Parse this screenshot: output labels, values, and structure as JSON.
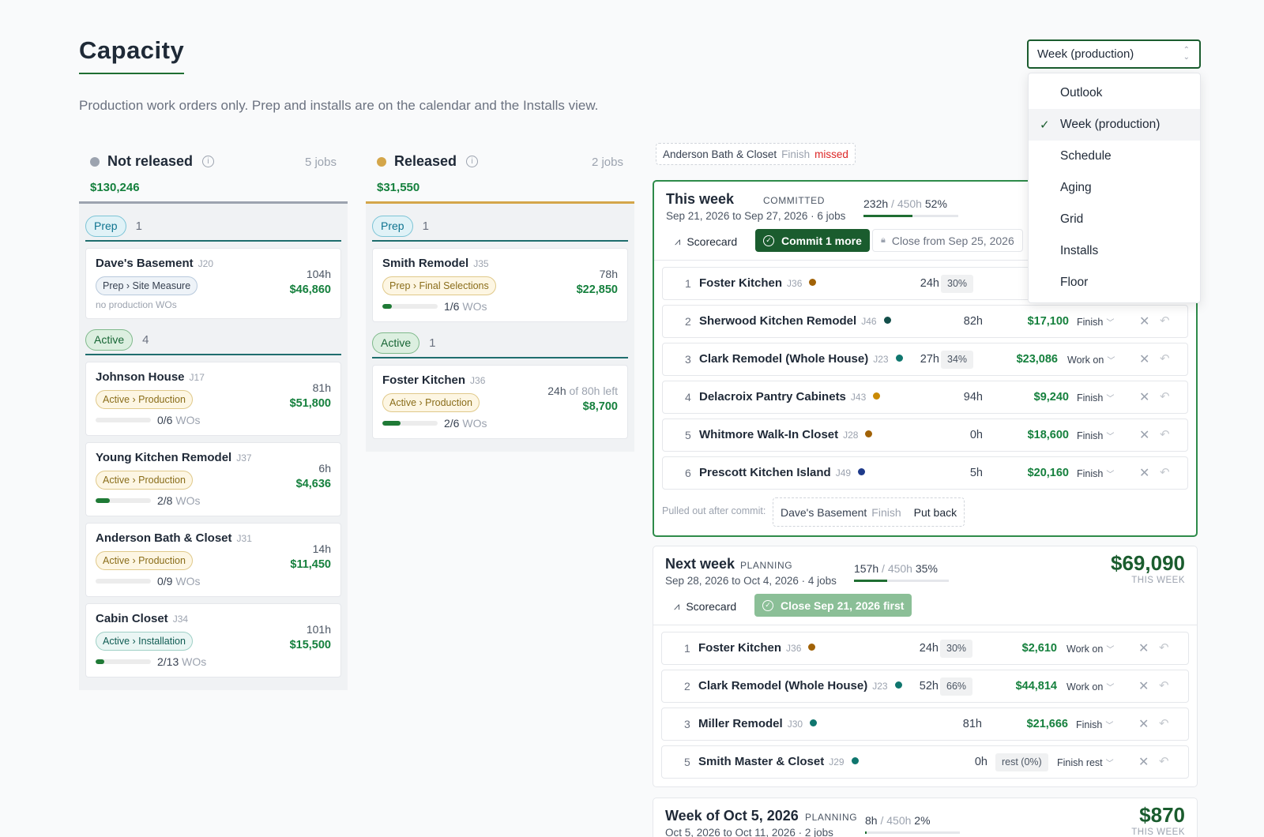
{
  "page": {
    "title": "Capacity",
    "subtitle": "Production work orders only. Prep and installs are on the calendar and the Installs view."
  },
  "view_select": {
    "value": "Week (production)",
    "options": [
      "Outlook",
      "Week (production)",
      "Schedule",
      "Aging",
      "Grid",
      "Installs",
      "Floor"
    ],
    "selected": "Week (production)"
  },
  "columns": [
    {
      "title": "Not released",
      "count": "5 jobs",
      "total": "$130,246",
      "dot_color": "#9ca3af",
      "border_color": "#9ca3af",
      "groups": [
        {
          "label": "Prep",
          "n": "1",
          "cards": [
            {
              "name": "Dave's Basement",
              "jid": "J20",
              "tag": "Prep › Site Measure",
              "tag_style": "blue",
              "sub": "no production WOs",
              "hours": "104h",
              "money": "$46,860"
            }
          ]
        },
        {
          "label": "Active",
          "n": "4",
          "cards": [
            {
              "name": "Johnson House",
              "jid": "J17",
              "tag": "Active › Production",
              "tag_style": "yellow",
              "progress": 0,
              "wo_done": "0/6",
              "wo_label": "WOs",
              "hours": "81h",
              "money": "$51,800"
            },
            {
              "name": "Young Kitchen Remodel",
              "jid": "J37",
              "tag": "Active › Production",
              "tag_style": "yellow",
              "progress": 0.25,
              "wo_done": "2/8",
              "wo_label": "WOs",
              "hours": "6h",
              "money": "$4,636"
            },
            {
              "name": "Anderson Bath & Closet",
              "jid": "J31",
              "tag": "Active › Production",
              "tag_style": "yellow",
              "progress": 0,
              "wo_done": "0/9",
              "wo_label": "WOs",
              "hours": "14h",
              "money": "$11,450"
            },
            {
              "name": "Cabin Closet",
              "jid": "J34",
              "tag": "Active › Installation",
              "tag_style": "teal",
              "progress": 0.15,
              "wo_done": "2/13",
              "wo_label": "WOs",
              "hours": "101h",
              "money": "$15,500"
            }
          ]
        }
      ]
    },
    {
      "title": "Released",
      "count": "2 jobs",
      "total": "$31,550",
      "dot_color": "#d4a64a",
      "border_color": "#d4a64a",
      "groups": [
        {
          "label": "Prep",
          "n": "1",
          "cards": [
            {
              "name": "Smith Remodel",
              "jid": "J35",
              "tag": "Prep › Final Selections",
              "tag_style": "yellow",
              "progress": 0.17,
              "wo_done": "1/6",
              "wo_label": "WOs",
              "hours": "78h",
              "money": "$22,850"
            }
          ]
        },
        {
          "label": "Active",
          "n": "1",
          "cards": [
            {
              "name": "Foster Kitchen",
              "jid": "J36",
              "tag": "Active › Production",
              "tag_style": "yellow",
              "progress": 0.33,
              "wo_done": "2/6",
              "wo_label": "WOs",
              "hours": "24h",
              "hours_suffix": " of 80h left",
              "money": "$8,700"
            }
          ]
        }
      ]
    }
  ],
  "missed": {
    "name": "Anderson Bath & Closet",
    "stage": "Finish",
    "status": "missed"
  },
  "weeks": [
    {
      "title": "This week",
      "status": "COMMITTED",
      "range": "Sep 21, 2026 to Sep 27, 2026 · 6 jobs",
      "util_used": "232h",
      "util_cap": "/ 450h",
      "util_pct": "52%",
      "util_fill": 0.52,
      "scorecard": "Scorecard",
      "commit_btn": "Commit 1 more",
      "close_btn": "Close from Sep 25, 2026",
      "rows": [
        {
          "num": "1",
          "name": "Foster Kitchen",
          "jid": "J36",
          "dot": "#a16207",
          "hours": "24h",
          "pct": "30%",
          "money": "",
          "action": ""
        },
        {
          "num": "2",
          "name": "Sherwood Kitchen Remodel",
          "jid": "J46",
          "dot": "#134e4a",
          "hours": "82h",
          "pct": "",
          "money": "$17,100",
          "action": "Finish"
        },
        {
          "num": "3",
          "name": "Clark Remodel (Whole House)",
          "jid": "J23",
          "dot": "#0f766e",
          "hours": "27h",
          "pct": "34%",
          "money": "$23,086",
          "action": "Work on"
        },
        {
          "num": "4",
          "name": "Delacroix Pantry Cabinets",
          "jid": "J43",
          "dot": "#ca8a04",
          "hours": "94h",
          "pct": "",
          "money": "$9,240",
          "action": "Finish"
        },
        {
          "num": "5",
          "name": "Whitmore Walk-In Closet",
          "jid": "J28",
          "dot": "#a16207",
          "hours": "0h",
          "pct": "",
          "money": "$18,600",
          "action": "Finish"
        },
        {
          "num": "6",
          "name": "Prescott Kitchen Island",
          "jid": "J49",
          "dot": "#1e3a8a",
          "hours": "5h",
          "pct": "",
          "money": "$20,160",
          "action": "Finish"
        }
      ],
      "pulled_label": "Pulled out after commit:",
      "pulled_name": "Dave's Basement",
      "pulled_stage": "Finish",
      "put_back": "Put back"
    },
    {
      "title": "Next week",
      "status": "PLANNING",
      "range": "Sep 28, 2026 to Oct 4, 2026 · 4 jobs",
      "util_used": "157h",
      "util_cap": "/ 450h",
      "util_pct": "35%",
      "util_fill": 0.35,
      "total": "$69,090",
      "total_label": "THIS WEEK",
      "scorecard": "Scorecard",
      "close_btn": "Close Sep 21, 2026 first",
      "rows": [
        {
          "num": "1",
          "name": "Foster Kitchen",
          "jid": "J36",
          "dot": "#a16207",
          "hours": "24h",
          "pct": "30%",
          "money": "$2,610",
          "action": "Work on"
        },
        {
          "num": "2",
          "name": "Clark Remodel (Whole House)",
          "jid": "J23",
          "dot": "#0f766e",
          "hours": "52h",
          "pct": "66%",
          "money": "$44,814",
          "action": "Work on"
        },
        {
          "num": "3",
          "name": "Miller Remodel",
          "jid": "J30",
          "dot": "#0f766e",
          "hours": "81h",
          "pct": "",
          "money": "$21,666",
          "action": "Finish"
        },
        {
          "num": "5",
          "name": "Smith Master & Closet",
          "jid": "J29",
          "dot": "#0f766e",
          "hours": "0h",
          "pct": "rest (0%)",
          "money": "",
          "action": "Finish rest"
        }
      ]
    },
    {
      "title": "Week of Oct 5, 2026",
      "status": "PLANNING",
      "range": "Oct 5, 2026 to Oct 11, 2026 · 2 jobs",
      "util_used": "8h",
      "util_cap": "/ 450h",
      "util_pct": "2%",
      "util_fill": 0.02,
      "total": "$870",
      "total_label": "THIS WEEK"
    }
  ]
}
